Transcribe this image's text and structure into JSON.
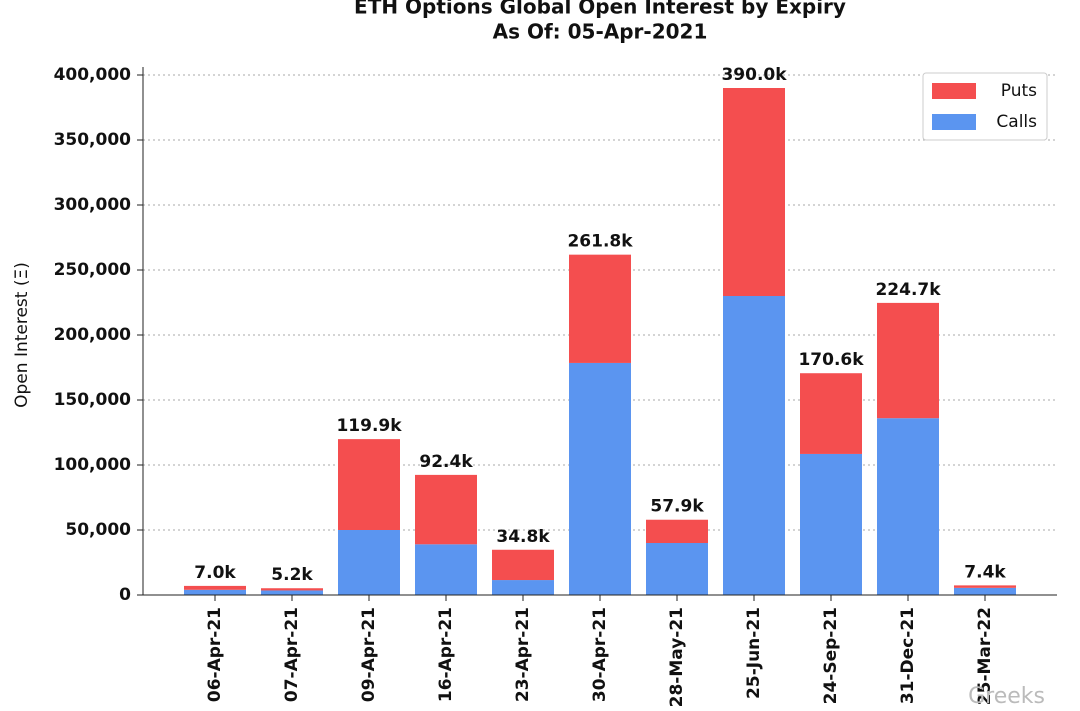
{
  "chart_data": {
    "type": "bar",
    "stacked": true,
    "title": "ETH Options Global Open Interest by Expiry",
    "subtitle": "As Of: 05-Apr-2021",
    "y_label": "Open Interest (Ξ)",
    "categories": [
      "06-Apr-21",
      "07-Apr-21",
      "09-Apr-21",
      "16-Apr-21",
      "23-Apr-21",
      "30-Apr-21",
      "28-May-21",
      "25-Jun-21",
      "24-Sep-21",
      "31-Dec-21",
      "25-Mar-22"
    ],
    "series": [
      {
        "name": "Calls",
        "color": "#5b95f0",
        "values": [
          4000,
          3500,
          50000,
          39000,
          11500,
          178500,
          40000,
          230000,
          108500,
          136000,
          5500
        ]
      },
      {
        "name": "Puts",
        "color": "#f44e4f",
        "values": [
          3000,
          1700,
          69900,
          53400,
          23300,
          83300,
          17900,
          160000,
          62100,
          88700,
          1900
        ]
      }
    ],
    "total_labels": [
      "7.0k",
      "5.2k",
      "119.9k",
      "92.4k",
      "34.8k",
      "261.8k",
      "57.9k",
      "390.0k",
      "170.6k",
      "224.7k",
      "7.4k"
    ],
    "ylim": [
      0,
      400000
    ],
    "yticks": [
      0,
      {
        "value": 50000,
        "label": "50,000"
      },
      {
        "value": 100000,
        "label": "100,000"
      },
      {
        "value": 150000,
        "label": "150,000"
      },
      {
        "value": 200000,
        "label": "200,000"
      },
      {
        "value": 250000,
        "label": "250,000"
      },
      {
        "value": 300000,
        "label": "300,000"
      },
      {
        "value": 350000,
        "label": "350,000"
      },
      {
        "value": 400000,
        "label": "400,000"
      }
    ],
    "grid": true,
    "legend": "upper right",
    "watermark": "Greeks"
  }
}
